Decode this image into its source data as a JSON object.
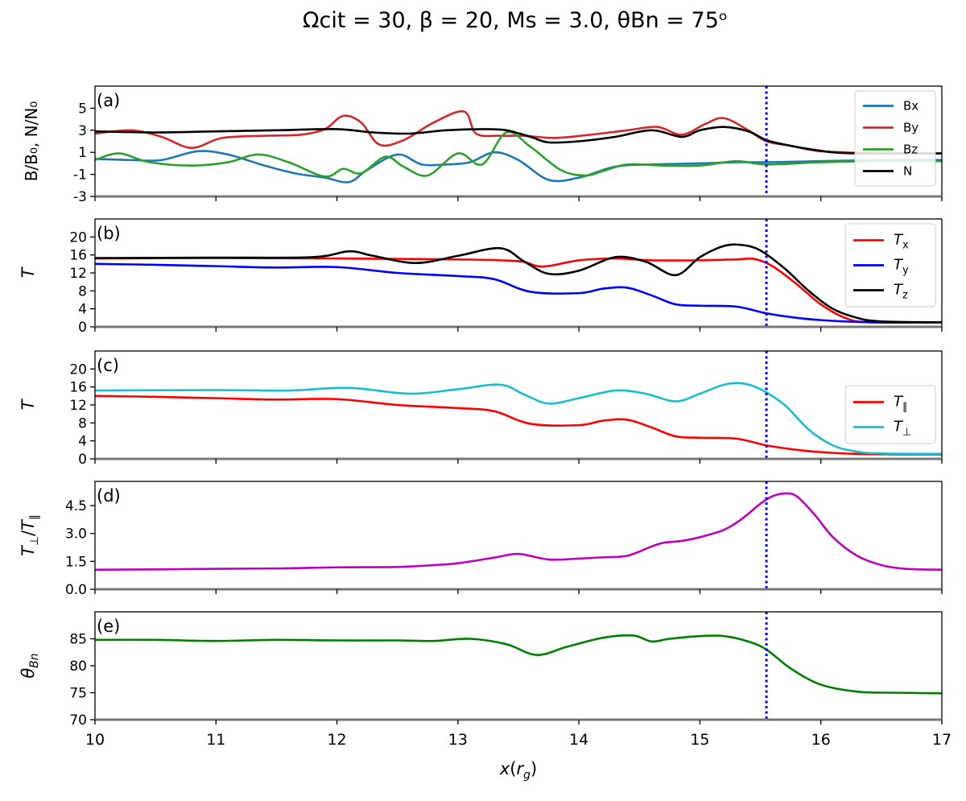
{
  "title": "Ωcit = 30, β = 20, Ms = 3.0, θBn = 75ᵒ",
  "chart_data": [
    {
      "type": "line",
      "tag": "(a)",
      "ylabel": "B/B₀, N/N₀",
      "xlim": [
        10,
        17
      ],
      "ylim": [
        -3,
        7
      ],
      "yticks": [
        "-3",
        "-1",
        "1",
        "3",
        "5"
      ],
      "legend_position": "top-right",
      "series": [
        {
          "name": "Bx",
          "color": "#1f77b4",
          "x": [
            10,
            10.3,
            10.55,
            10.85,
            11.1,
            11.4,
            11.65,
            11.9,
            12.1,
            12.25,
            12.5,
            12.7,
            12.9,
            13.1,
            13.3,
            13.5,
            13.75,
            14,
            14.3,
            14.6,
            15,
            15.3,
            15.55,
            16,
            16.5,
            17
          ],
          "y": [
            0.4,
            0.3,
            0.3,
            1.1,
            0.8,
            -0.2,
            -0.9,
            -1.3,
            -1.7,
            -0.6,
            0.8,
            -0.1,
            -0.1,
            0.1,
            1.0,
            0.3,
            -1.5,
            -1.3,
            -0.3,
            -0.1,
            0,
            0.1,
            0.1,
            0.2,
            0.3,
            0.3
          ]
        },
        {
          "name": "By",
          "color": "#d62728",
          "x": [
            10,
            10.3,
            10.55,
            10.8,
            11.05,
            11.4,
            11.7,
            11.9,
            12.05,
            12.2,
            12.35,
            12.55,
            12.8,
            13.05,
            13.15,
            13.35,
            13.55,
            13.8,
            14.1,
            14.4,
            14.65,
            14.85,
            15.05,
            15.2,
            15.4,
            15.55,
            15.75,
            16,
            16.5,
            17
          ],
          "y": [
            2.7,
            3.0,
            2.4,
            1.4,
            2.3,
            2.5,
            2.6,
            3.1,
            4.3,
            3.7,
            1.7,
            2.1,
            3.7,
            4.7,
            2.7,
            2.5,
            2.5,
            2.3,
            2.6,
            3.0,
            3.3,
            2.6,
            3.6,
            4.1,
            3.0,
            2.0,
            1.6,
            1.1,
            0.9,
            0.9
          ]
        },
        {
          "name": "Bz",
          "color": "#2ca02c",
          "x": [
            10,
            10.2,
            10.45,
            10.8,
            11.1,
            11.35,
            11.6,
            11.9,
            12.05,
            12.2,
            12.4,
            12.55,
            12.75,
            13.0,
            13.2,
            13.4,
            13.6,
            13.85,
            14.05,
            14.2,
            14.4,
            14.7,
            15,
            15.3,
            15.55,
            16,
            16.5,
            17
          ],
          "y": [
            0.3,
            0.9,
            0.1,
            -0.2,
            0.1,
            0.8,
            0.1,
            -1.2,
            -0.5,
            -0.9,
            0.6,
            -0.3,
            -1.1,
            0.9,
            -0.1,
            2.8,
            1.5,
            -0.6,
            -1.1,
            -0.7,
            -0.1,
            -0.2,
            -0.2,
            0.2,
            -0.1,
            0.1,
            0.2,
            0.2
          ]
        },
        {
          "name": "N",
          "color": "#000000",
          "x": [
            10,
            10.5,
            11,
            11.5,
            12,
            12.3,
            12.6,
            12.9,
            13.2,
            13.4,
            13.6,
            13.75,
            14,
            14.3,
            14.6,
            14.85,
            15,
            15.2,
            15.4,
            15.55,
            15.7,
            15.9,
            16.1,
            16.3,
            16.6,
            17
          ],
          "y": [
            2.9,
            2.8,
            2.9,
            3.0,
            3.1,
            2.8,
            2.7,
            3.0,
            3.1,
            3.0,
            2.4,
            1.9,
            2.0,
            2.4,
            3.0,
            2.4,
            3.0,
            3.3,
            2.9,
            2.1,
            1.7,
            1.3,
            1.0,
            0.9,
            0.9,
            0.9
          ]
        }
      ],
      "vline_x": 15.55
    },
    {
      "type": "line",
      "tag": "(b)",
      "ylabel": "T",
      "xlim": [
        10,
        17
      ],
      "ylim": [
        0,
        24
      ],
      "yticks": [
        "0",
        "4",
        "8",
        "12",
        "16",
        "20"
      ],
      "legend_position": "top-right",
      "series": [
        {
          "name": "Tx",
          "color": "#ff0000",
          "x": [
            10,
            11,
            12,
            13,
            13.5,
            13.7,
            14,
            14.3,
            14.6,
            15,
            15.3,
            15.45,
            15.6,
            15.8,
            16,
            16.2,
            16.4,
            17
          ],
          "y": [
            15.2,
            15.3,
            15.2,
            15.0,
            14.6,
            13.4,
            14.8,
            15.2,
            14.8,
            14.8,
            15.0,
            15.1,
            13.5,
            9.5,
            5.0,
            2.0,
            1.0,
            1.0
          ]
        },
        {
          "name": "Ty",
          "color": "#0000ff",
          "x": [
            10,
            10.5,
            11,
            11.5,
            12,
            12.5,
            13,
            13.3,
            13.6,
            14,
            14.2,
            14.4,
            14.6,
            14.8,
            15,
            15.3,
            15.55,
            15.8,
            16,
            16.3,
            16.6,
            17
          ],
          "y": [
            14.0,
            13.8,
            13.5,
            13.2,
            13.3,
            12.0,
            11.3,
            10.6,
            7.8,
            7.5,
            8.5,
            8.7,
            7.0,
            5.0,
            4.7,
            4.5,
            3.0,
            2.0,
            1.5,
            1.1,
            1.0,
            1.0
          ]
        },
        {
          "name": "Tz",
          "color": "#000000",
          "x": [
            10,
            11,
            11.8,
            12.1,
            12.3,
            12.65,
            13.0,
            13.35,
            13.55,
            13.75,
            14,
            14.3,
            14.55,
            14.8,
            15.0,
            15.2,
            15.35,
            15.5,
            15.7,
            15.9,
            16.1,
            16.3,
            16.5,
            17
          ],
          "y": [
            15.3,
            15.4,
            15.5,
            16.8,
            15.8,
            14.2,
            15.8,
            17.5,
            14.5,
            11.8,
            12.5,
            15.5,
            14.5,
            11.5,
            15.5,
            18.0,
            18.2,
            17.0,
            13.0,
            8.0,
            4.0,
            2.0,
            1.2,
            1.0
          ]
        }
      ],
      "vline_x": 15.55
    },
    {
      "type": "line",
      "tag": "(c)",
      "ylabel": "T",
      "xlim": [
        10,
        17
      ],
      "ylim": [
        0,
        24
      ],
      "yticks": [
        "0",
        "4",
        "8",
        "12",
        "16",
        "20"
      ],
      "legend_position": "center-right",
      "series": [
        {
          "name": "T∥",
          "color": "#ff0000",
          "x": [
            10,
            10.5,
            11,
            11.5,
            12,
            12.5,
            13,
            13.3,
            13.6,
            14,
            14.2,
            14.4,
            14.6,
            14.8,
            15,
            15.3,
            15.55,
            15.8,
            16,
            16.3,
            16.6,
            17
          ],
          "y": [
            14.0,
            13.8,
            13.5,
            13.2,
            13.3,
            12.0,
            11.3,
            10.6,
            7.8,
            7.5,
            8.5,
            8.7,
            7.0,
            5.0,
            4.7,
            4.5,
            3.0,
            2.0,
            1.5,
            1.1,
            1.0,
            1.0
          ]
        },
        {
          "name": "T⊥",
          "color": "#17becf",
          "x": [
            10,
            11,
            11.6,
            12.1,
            12.6,
            13.0,
            13.35,
            13.55,
            13.75,
            14,
            14.3,
            14.55,
            14.8,
            15.0,
            15.2,
            15.35,
            15.5,
            15.7,
            15.9,
            16.1,
            16.3,
            16.5,
            17
          ],
          "y": [
            15.2,
            15.3,
            15.2,
            15.8,
            14.5,
            15.5,
            16.5,
            14.3,
            12.3,
            13.5,
            15.2,
            14.5,
            12.8,
            14.5,
            16.5,
            16.8,
            15.5,
            12.0,
            6.5,
            3.0,
            1.6,
            1.2,
            1.1
          ]
        }
      ],
      "vline_x": 15.55
    },
    {
      "type": "line",
      "tag": "(d)",
      "ylabel": "T⊥/T∥",
      "xlim": [
        10,
        17
      ],
      "ylim": [
        0,
        5.8
      ],
      "yticks": [
        "0.0",
        "1.5",
        "3.0",
        "4.5"
      ],
      "series": [
        {
          "name": "",
          "color": "#bf00bf",
          "x": [
            10,
            10.5,
            11,
            11.5,
            12,
            12.5,
            12.8,
            13,
            13.3,
            13.5,
            13.75,
            14,
            14.2,
            14.4,
            14.6,
            14.7,
            14.85,
            15,
            15.2,
            15.35,
            15.5,
            15.6,
            15.7,
            15.8,
            15.95,
            16.1,
            16.3,
            16.5,
            16.7,
            17
          ],
          "y": [
            1.05,
            1.07,
            1.1,
            1.12,
            1.18,
            1.2,
            1.3,
            1.4,
            1.7,
            1.9,
            1.6,
            1.65,
            1.72,
            1.8,
            2.3,
            2.5,
            2.6,
            2.8,
            3.2,
            3.8,
            4.6,
            5.0,
            5.15,
            5.0,
            4.0,
            2.8,
            1.8,
            1.3,
            1.1,
            1.05
          ]
        }
      ],
      "vline_x": 15.55
    },
    {
      "type": "line",
      "tag": "(e)",
      "ylabel": "θBn",
      "xlabel": "x(rg)",
      "xlim": [
        10,
        17
      ],
      "ylim": [
        70,
        90
      ],
      "xticks": [
        "10",
        "11",
        "12",
        "13",
        "14",
        "15",
        "16",
        "17"
      ],
      "yticks": [
        "70",
        "75",
        "80",
        "85"
      ],
      "series": [
        {
          "name": "",
          "color": "#007f00",
          "x": [
            10,
            10.5,
            11,
            11.5,
            12,
            12.5,
            12.8,
            13.1,
            13.4,
            13.65,
            13.9,
            14.2,
            14.45,
            14.6,
            14.75,
            15.0,
            15.2,
            15.4,
            15.55,
            15.75,
            16,
            16.3,
            16.6,
            17
          ],
          "y": [
            84.8,
            84.8,
            84.6,
            84.8,
            84.7,
            84.7,
            84.6,
            85.0,
            84.0,
            82.0,
            83.5,
            85.2,
            85.6,
            84.5,
            85.0,
            85.5,
            85.5,
            84.5,
            83.0,
            79.5,
            76.5,
            75.2,
            75.0,
            74.9
          ]
        }
      ],
      "vline_x": 15.55
    }
  ]
}
